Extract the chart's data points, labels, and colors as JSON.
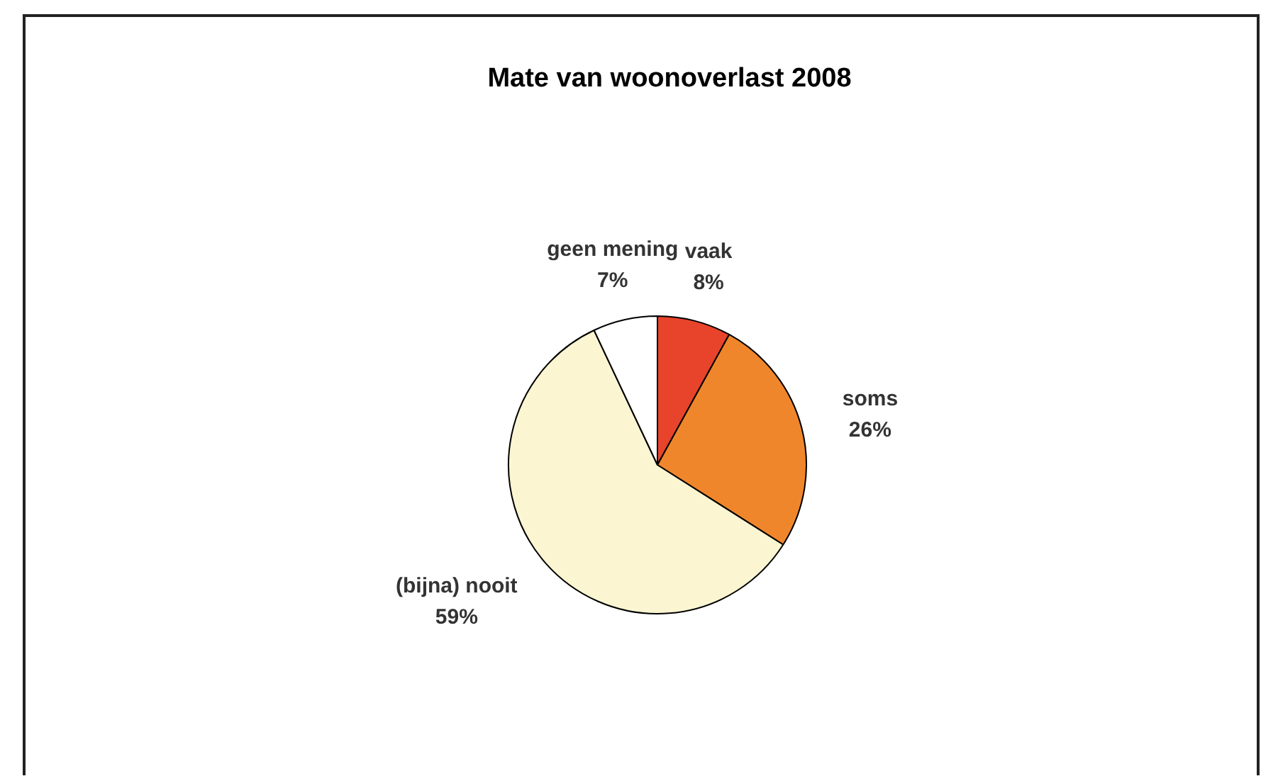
{
  "chart_data": {
    "type": "pie",
    "title": "Mate van woonoverlast 2008",
    "categories": [
      "vaak",
      "soms",
      "(bijna) nooit",
      "geen mening"
    ],
    "values": [
      8,
      26,
      59,
      7
    ],
    "value_labels": [
      "8%",
      "26%",
      "59%",
      "7%"
    ],
    "colors": [
      "#e8432b",
      "#f0862c",
      "#fbf5d2",
      "#ffffff"
    ],
    "legend": false
  }
}
